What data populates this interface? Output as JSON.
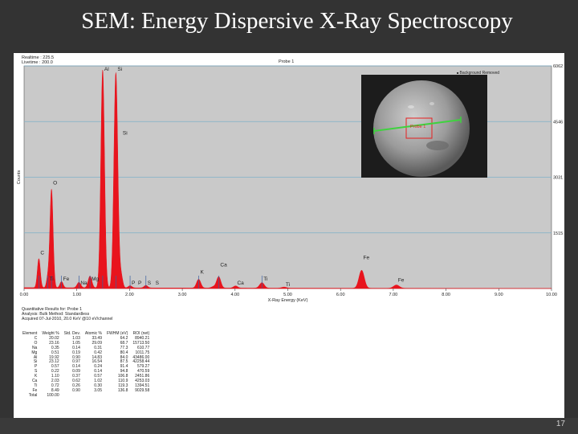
{
  "slide": {
    "title": "SEM: Energy Dispersive X-Ray Spectroscopy",
    "page_number": "17"
  },
  "spectrum_header": {
    "realtime": "Realtime : 225.5",
    "livetime": "Livetime : 200.0",
    "probe_title": "Probe 1"
  },
  "inset": {
    "legend": "Background Removed",
    "probe_label": "Probe 1"
  },
  "results": {
    "line1": "Quantitative Results for: Probe 1",
    "line2": "Analysis: Bulk    Method: Standardless",
    "line3": "Acquired 07-Jul-2010, 20.0 KeV @10 eV/channel",
    "headers": [
      "Element",
      "Weight %",
      "Std. Dev.",
      "Atomic %",
      "FWHM (eV)",
      "ROI (net)"
    ],
    "rows": [
      [
        "C",
        "20.02",
        "1.03",
        "33.49",
        "64.2",
        "8940.21"
      ],
      [
        "O",
        "23.16",
        "1.05",
        "29.09",
        "68.7",
        "15713.50"
      ],
      [
        "Na",
        "0.35",
        "0.14",
        "0.31",
        "77.3",
        "610.77"
      ],
      [
        "Mg",
        "0.51",
        "0.19",
        "0.42",
        "80.4",
        "1011.75"
      ],
      [
        "Al",
        "19.92",
        "0.90",
        "14.83",
        "84.0",
        "43486.00"
      ],
      [
        "Si",
        "23.12",
        "0.97",
        "16.54",
        "87.5",
        "42258.44"
      ],
      [
        "P",
        "0.57",
        "0.14",
        "0.24",
        "91.4",
        "579.27"
      ],
      [
        "S",
        "0.22",
        "0.09",
        "0.14",
        "94.8",
        "470.59"
      ],
      [
        "K",
        "1.10",
        "0.37",
        "0.57",
        "106.8",
        "2451.86"
      ],
      [
        "Ca",
        "2.03",
        "0.62",
        "1.02",
        "110.9",
        "4253.03"
      ],
      [
        "Ti",
        "0.72",
        "0.26",
        "0.30",
        "119.3",
        "1394.51"
      ],
      [
        "Fe",
        "8.49",
        "0.90",
        "3.05",
        "136.8",
        "9029.58"
      ],
      [
        "Total",
        "100.00",
        "",
        "",
        "",
        ""
      ]
    ]
  },
  "colors": {
    "plot_background": "#c9c9c9",
    "spectrum": "#e8141d",
    "gridline": "#7fb0c8",
    "marker": "#3b5fa0",
    "probe_line": "#3fd23f",
    "probe_box": "#e62020"
  },
  "chart_data": {
    "type": "area",
    "title": "Probe 1",
    "xlabel": "X-Ray Energy (KeV)",
    "ylabel": "Counts",
    "xlim": [
      0,
      10
    ],
    "ylim": [
      0,
      6062
    ],
    "x_ticks": [
      "0.00",
      "1.00",
      "2.00",
      "3.00",
      "4.00",
      "5.00",
      "6.00",
      "7.00",
      "8.00",
      "9.00",
      "10.00"
    ],
    "y_ticks": [
      {
        "value": 1515,
        "label": "1515"
      },
      {
        "value": 3031,
        "label": "3031"
      },
      {
        "value": 4546,
        "label": "4546"
      },
      {
        "value": 6062,
        "label": "6062"
      }
    ],
    "grid": true,
    "peaks": [
      {
        "x": 0.28,
        "y": 790,
        "w": 0.028
      },
      {
        "x": 0.52,
        "y": 2680,
        "w": 0.03
      },
      {
        "x": 0.45,
        "y": 270,
        "w": 0.025
      },
      {
        "x": 0.71,
        "y": 170,
        "w": 0.03
      },
      {
        "x": 1.04,
        "y": 150,
        "w": 0.035
      },
      {
        "x": 1.25,
        "y": 320,
        "w": 0.035
      },
      {
        "x": 1.49,
        "y": 5930,
        "w": 0.035
      },
      {
        "x": 1.74,
        "y": 5860,
        "w": 0.037
      },
      {
        "x": 1.84,
        "y": 330,
        "w": 0.03
      },
      {
        "x": 2.01,
        "y": 60,
        "w": 0.035
      },
      {
        "x": 2.31,
        "y": 70,
        "w": 0.035
      },
      {
        "x": 3.31,
        "y": 240,
        "w": 0.04
      },
      {
        "x": 3.59,
        "y": 40,
        "w": 0.04
      },
      {
        "x": 3.69,
        "y": 310,
        "w": 0.04
      },
      {
        "x": 4.01,
        "y": 60,
        "w": 0.04
      },
      {
        "x": 4.51,
        "y": 150,
        "w": 0.045
      },
      {
        "x": 4.93,
        "y": 30,
        "w": 0.045
      },
      {
        "x": 6.4,
        "y": 490,
        "w": 0.05
      },
      {
        "x": 7.06,
        "y": 90,
        "w": 0.055
      }
    ],
    "background_counts": 25,
    "line_labels": [
      {
        "text": "Al",
        "x": 1.49,
        "y": 6062
      },
      {
        "text": "Si",
        "x": 1.74,
        "y": 6062
      },
      {
        "text": "Si",
        "x": 1.84,
        "y": 4150
      },
      {
        "text": "O",
        "x": 0.52,
        "y": 2790
      },
      {
        "text": "C",
        "x": 0.28,
        "y": 890
      },
      {
        "text": "Ti",
        "x": 0.45,
        "y": 180
      },
      {
        "text": "Fe",
        "x": 0.71,
        "y": 180
      },
      {
        "text": "Na",
        "x": 1.04,
        "y": 70
      },
      {
        "text": "Mg",
        "x": 1.25,
        "y": 170
      },
      {
        "text": "P",
        "x": 2.01,
        "y": 70
      },
      {
        "text": "P",
        "x": 2.13,
        "y": 70
      },
      {
        "text": "S",
        "x": 2.31,
        "y": 70
      },
      {
        "text": "S",
        "x": 2.46,
        "y": 70
      },
      {
        "text": "K",
        "x": 3.31,
        "y": 360
      },
      {
        "text": "Ca",
        "x": 3.69,
        "y": 560
      },
      {
        "text": "Ca",
        "x": 4.01,
        "y": 70
      },
      {
        "text": "Ti",
        "x": 4.51,
        "y": 170
      },
      {
        "text": "Ti",
        "x": 4.93,
        "y": 20
      },
      {
        "text": "Fe",
        "x": 6.4,
        "y": 760
      },
      {
        "text": "Fe",
        "x": 7.06,
        "y": 140
      }
    ],
    "markers": [
      0.28,
      0.45,
      0.52,
      0.71,
      1.04,
      1.25,
      1.49,
      1.74,
      2.01,
      2.31,
      3.31,
      3.69,
      4.51
    ],
    "axis_prefix": "X-Ray Energy (KeV)"
  }
}
